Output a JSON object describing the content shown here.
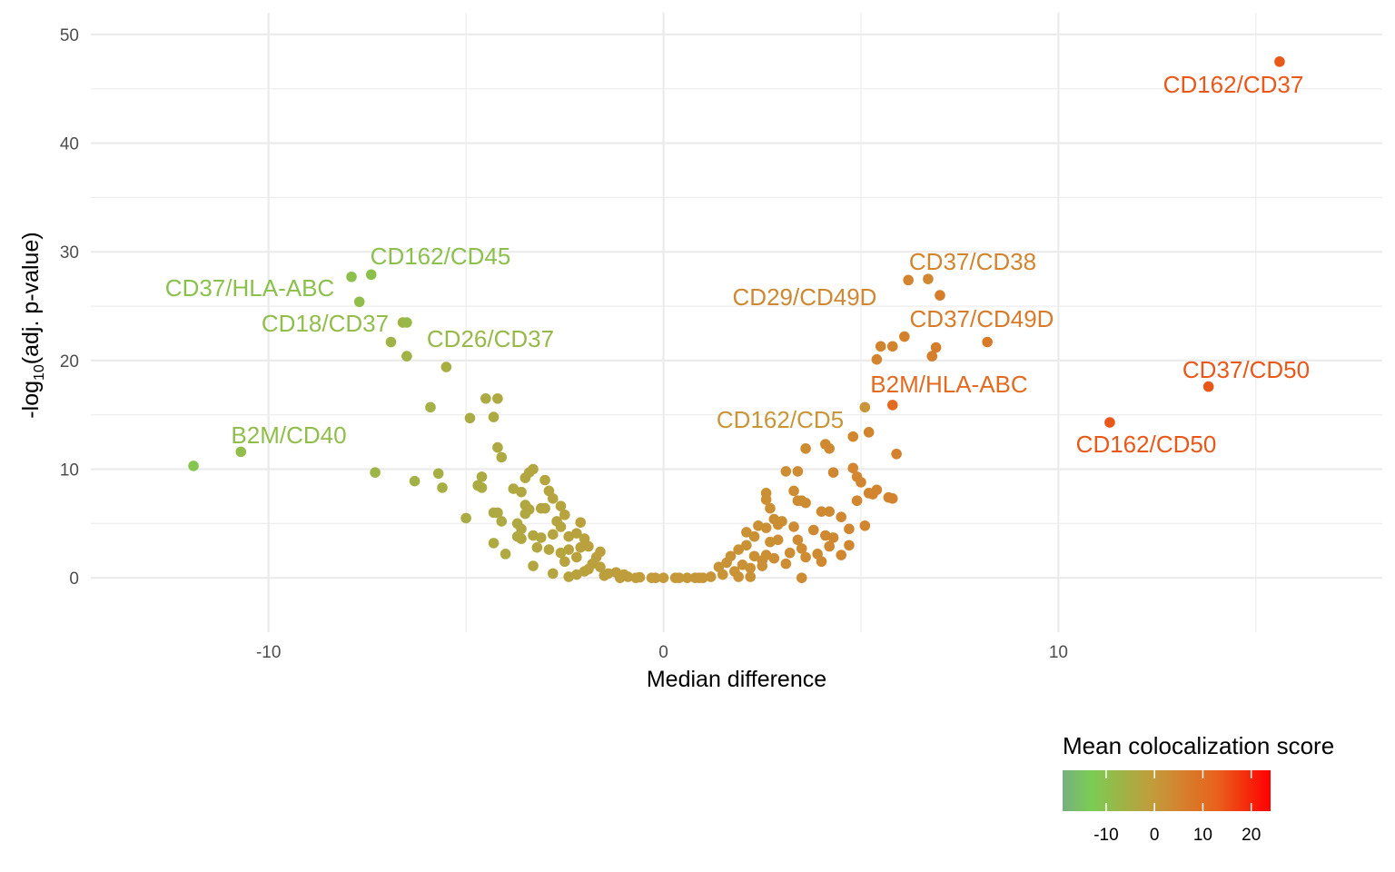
{
  "chart_data": {
    "type": "scatter",
    "title": "",
    "xlabel": "Median difference",
    "ylabel": "-log10(adj. p-value)",
    "ylabel_parts": {
      "prefix": "-log",
      "sub": "10",
      "suffix": "(adj. p-value)"
    },
    "xlim": [
      -14.5,
      18.2
    ],
    "ylim": [
      -5,
      52
    ],
    "x_ticks": [
      -10,
      0,
      10
    ],
    "x_tick_labels": [
      "-10",
      "0",
      "10"
    ],
    "y_ticks": [
      0,
      10,
      20,
      30,
      40,
      50
    ],
    "y_tick_labels": [
      "0",
      "10",
      "20",
      "30",
      "40",
      "50"
    ],
    "grid": true,
    "colors": {
      "gradient_stops": [
        "#78b07f",
        "#7bcc53",
        "#c49a3a",
        "#e8611c",
        "#ff0000"
      ],
      "gradient_values": [
        -19,
        -13,
        0,
        13,
        24
      ],
      "background": "#ffffff",
      "grid": "#ebebeb"
    },
    "legend": {
      "title": "Mean colocalization score",
      "position": "bottom-right",
      "range": [
        -19,
        24
      ],
      "ticks": [
        -10,
        0,
        10,
        20
      ],
      "tick_labels": [
        "-10",
        "0",
        "10",
        "20"
      ]
    },
    "labeled_points": [
      {
        "label": "CD162/CD37",
        "x": 15.6,
        "y": 47.5,
        "score": 14
      },
      {
        "label": "CD162/CD45",
        "x": -7.4,
        "y": 27.9,
        "score": -10
      },
      {
        "label": "CD37/HLA-ABC",
        "x": -7.9,
        "y": 27.7,
        "score": -10
      },
      {
        "label": "CD18/CD37",
        "x": -7.7,
        "y": 25.4,
        "score": -9
      },
      {
        "label": "CD26/CD37",
        "x": -6.5,
        "y": 23.5,
        "score": -8
      },
      {
        "label": "B2M/CD40",
        "x": -10.7,
        "y": 11.6,
        "score": -9
      },
      {
        "label": "CD37/CD38",
        "x": 6.2,
        "y": 27.4,
        "score": 5
      },
      {
        "label": "CD29/CD49D",
        "x": 6.7,
        "y": 27.5,
        "score": 4
      },
      {
        "label": "CD37/CD49D",
        "x": 8.2,
        "y": 21.7,
        "score": 7
      },
      {
        "label": "B2M/HLA-ABC",
        "x": 5.8,
        "y": 15.9,
        "score": 11
      },
      {
        "label": "CD162/CD5",
        "x": 5.1,
        "y": 15.7,
        "score": 1
      },
      {
        "label": "CD37/CD50",
        "x": 13.8,
        "y": 17.6,
        "score": 14
      },
      {
        "label": "CD162/CD50",
        "x": 11.3,
        "y": 14.3,
        "score": 14
      }
    ],
    "points": [
      [
        -11.9,
        10.3
      ],
      [
        -7.3,
        9.7
      ],
      [
        -6.6,
        23.5
      ],
      [
        -6.9,
        21.7
      ],
      [
        -6.5,
        20.4
      ],
      [
        -5.5,
        19.4
      ],
      [
        -5.9,
        15.7
      ],
      [
        -4.9,
        14.7
      ],
      [
        -4.5,
        16.5
      ],
      [
        -4.2,
        16.5
      ],
      [
        -4.3,
        14.8
      ],
      [
        -4.2,
        12
      ],
      [
        -4.1,
        11.1
      ],
      [
        -6.3,
        8.9
      ],
      [
        -5.7,
        9.6
      ],
      [
        -5.6,
        8.3
      ],
      [
        -4.6,
        9.3
      ],
      [
        -4.7,
        8.5
      ],
      [
        -4.6,
        8.3
      ],
      [
        -5.0,
        5.5
      ],
      [
        -4.3,
        6
      ],
      [
        -4.2,
        6
      ],
      [
        -4.1,
        5.2
      ],
      [
        -3.8,
        8.2
      ],
      [
        -3.5,
        9.2
      ],
      [
        -3.4,
        9.7
      ],
      [
        -3.3,
        10
      ],
      [
        -3.6,
        7.9
      ],
      [
        -3.5,
        6.7
      ],
      [
        -3.4,
        6.3
      ],
      [
        -3.5,
        5.9
      ],
      [
        -3.7,
        5
      ],
      [
        -3.6,
        4.5
      ],
      [
        -3.7,
        3.8
      ],
      [
        -3.6,
        3.6
      ],
      [
        -4.3,
        3.2
      ],
      [
        -4.0,
        2.2
      ],
      [
        -3.3,
        3.9
      ],
      [
        -3.1,
        3.7
      ],
      [
        -3.2,
        2.8
      ],
      [
        -2.9,
        2.6
      ],
      [
        -3.3,
        1.1
      ],
      [
        -3.0,
        9
      ],
      [
        -2.9,
        8
      ],
      [
        -2.8,
        7.3
      ],
      [
        -3.1,
        6.4
      ],
      [
        -3.0,
        6.4
      ],
      [
        -2.7,
        5.2
      ],
      [
        -2.6,
        6.6
      ],
      [
        -2.5,
        5.8
      ],
      [
        -2.6,
        4.7
      ],
      [
        -2.8,
        4
      ],
      [
        -2.4,
        3.8
      ],
      [
        -2.2,
        4.1
      ],
      [
        -2.1,
        5.1
      ],
      [
        -2.0,
        3.6
      ],
      [
        -2.1,
        2.8
      ],
      [
        -2.4,
        2.6
      ],
      [
        -2.6,
        2.3
      ],
      [
        -1.9,
        2.9
      ],
      [
        -2.2,
        1.9
      ],
      [
        -2.5,
        1.5
      ],
      [
        -2.8,
        0.4
      ],
      [
        -2.4,
        0.1
      ],
      [
        -2.2,
        0.3
      ],
      [
        -2.0,
        0.6
      ],
      [
        -1.7,
        1.9
      ],
      [
        -1.6,
        2.4
      ],
      [
        -1.8,
        1.3
      ],
      [
        -1.6,
        1
      ],
      [
        -1.9,
        0.8
      ],
      [
        -1.4,
        0.4
      ],
      [
        -1.2,
        0.5
      ],
      [
        -1.0,
        0.3
      ],
      [
        -0.9,
        0.1
      ],
      [
        -0.6,
        0.05
      ],
      [
        -0.3,
        0
      ],
      [
        0.0,
        0
      ],
      [
        0.3,
        0
      ],
      [
        0.6,
        0
      ],
      [
        0.9,
        0
      ],
      [
        1.2,
        0.1
      ],
      [
        1.4,
        1
      ],
      [
        1.6,
        1.4
      ],
      [
        1.8,
        0.6
      ],
      [
        1.7,
        2
      ],
      [
        1.9,
        2.6
      ],
      [
        2.1,
        3
      ],
      [
        2.3,
        3.8
      ],
      [
        2.1,
        4.2
      ],
      [
        2.4,
        4.8
      ],
      [
        2.3,
        2
      ],
      [
        2.2,
        0.9
      ],
      [
        2.5,
        1.6
      ],
      [
        2.0,
        1.2
      ],
      [
        1.9,
        0.1
      ],
      [
        2.2,
        0.1
      ],
      [
        2.6,
        7.8
      ],
      [
        2.6,
        7.2
      ],
      [
        2.7,
        6.4
      ],
      [
        2.8,
        5.4
      ],
      [
        2.6,
        4.6
      ],
      [
        2.9,
        4.9
      ],
      [
        3.0,
        5.2
      ],
      [
        2.7,
        3.3
      ],
      [
        2.9,
        3.5
      ],
      [
        2.6,
        2.1
      ],
      [
        2.8,
        1.8
      ],
      [
        2.5,
        1.1
      ],
      [
        3.1,
        1.3
      ],
      [
        3.2,
        2.3
      ],
      [
        3.1,
        9.8
      ],
      [
        3.4,
        9.8
      ],
      [
        3.3,
        8
      ],
      [
        3.4,
        7.1
      ],
      [
        3.5,
        7.1
      ],
      [
        3.6,
        6.9
      ],
      [
        3.3,
        4.7
      ],
      [
        3.4,
        3.5
      ],
      [
        3.5,
        2.7
      ],
      [
        3.6,
        1.9
      ],
      [
        3.8,
        4.4
      ],
      [
        3.9,
        2.2
      ],
      [
        3.5,
        0
      ],
      [
        3.6,
        11.9
      ],
      [
        4.1,
        12.3
      ],
      [
        4.2,
        11.9
      ],
      [
        4.3,
        9.7
      ],
      [
        4.0,
        6.1
      ],
      [
        4.2,
        6.1
      ],
      [
        4.5,
        5.6
      ],
      [
        4.1,
        3.9
      ],
      [
        4.3,
        3.7
      ],
      [
        4.2,
        2.9
      ],
      [
        4.5,
        2.1
      ],
      [
        4.0,
        1.5
      ],
      [
        4.7,
        4.5
      ],
      [
        4.8,
        13
      ],
      [
        4.8,
        10.1
      ],
      [
        4.9,
        9.3
      ],
      [
        5.0,
        8.8
      ],
      [
        4.9,
        7.1
      ],
      [
        5.2,
        7.8
      ],
      [
        5.3,
        7.7
      ],
      [
        5.4,
        8.1
      ],
      [
        5.1,
        4.8
      ],
      [
        4.7,
        3
      ],
      [
        5.2,
        13.4
      ],
      [
        5.5,
        21.3
      ],
      [
        5.4,
        20.1
      ],
      [
        5.8,
        21.3
      ],
      [
        6.1,
        22.2
      ],
      [
        6.9,
        21.2
      ],
      [
        6.8,
        20.4
      ],
      [
        7.0,
        26
      ],
      [
        5.9,
        11.4
      ],
      [
        5.7,
        7.4
      ],
      [
        5.8,
        7.3
      ],
      [
        -0.7,
        0
      ],
      [
        -0.2,
        0
      ],
      [
        0.4,
        0
      ],
      [
        0.8,
        0
      ],
      [
        -1.1,
        0
      ],
      [
        1.0,
        0
      ],
      [
        -1.5,
        0.2
      ],
      [
        1.5,
        0.3
      ]
    ]
  }
}
